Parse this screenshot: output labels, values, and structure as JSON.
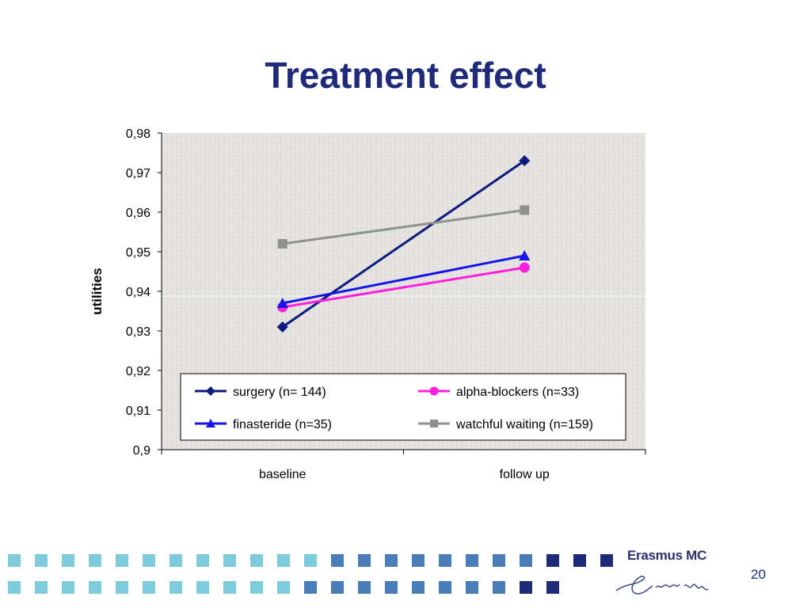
{
  "slide": {
    "title": "Treatment effect",
    "page_number": "20",
    "logo_text": "Erasmus MC",
    "logo_signature": "Erasmus"
  },
  "colors": {
    "title": "#1f2a7a",
    "footer_light": "#7ecbdc",
    "footer_mid": "#4a7cb8",
    "footer_dark": "#1e2a78"
  },
  "chart_data": {
    "type": "line",
    "title": "",
    "xlabel": "",
    "ylabel": "utilities",
    "categories": [
      "baseline",
      "follow up"
    ],
    "ylim": [
      0.9,
      0.98
    ],
    "yticks": [
      "0,9",
      "0,91",
      "0,92",
      "0,93",
      "0,94",
      "0,95",
      "0,96",
      "0,97",
      "0,98"
    ],
    "grid": false,
    "background": "granite texture",
    "legend_position": "bottom-inside",
    "series": [
      {
        "name": "surgery (n= 144)",
        "values": [
          0.931,
          0.973
        ],
        "color": "#0a1a7e",
        "marker": "diamond"
      },
      {
        "name": "alpha-blockers (n=33)",
        "values": [
          0.936,
          0.946
        ],
        "color": "#ff1fdc",
        "marker": "circle"
      },
      {
        "name": "finasteride (n=35)",
        "values": [
          0.937,
          0.949
        ],
        "color": "#1515ea",
        "marker": "triangle"
      },
      {
        "name": "watchful waiting (n=159)",
        "values": [
          0.952,
          0.9605
        ],
        "color": "#909090",
        "marker": "square"
      }
    ]
  }
}
